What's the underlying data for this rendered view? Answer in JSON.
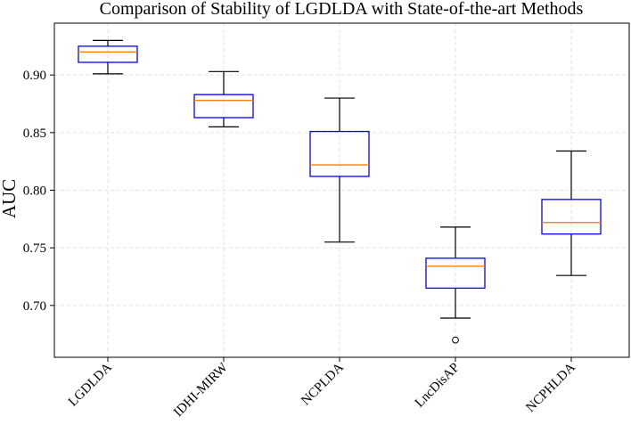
{
  "chart_data": {
    "type": "box",
    "title": "Comparison of Stability of LGDLDA with State-of-the-art Methods",
    "xlabel": "",
    "ylabel": "AUC",
    "ylim": [
      0.655,
      0.945
    ],
    "yticks": [
      0.7,
      0.75,
      0.8,
      0.85,
      0.9
    ],
    "grid": true,
    "colors": {
      "box": "#0000ff",
      "median": "#ff7f0e",
      "whisker": "#000000",
      "grid": "#e3e3e3"
    },
    "categories": [
      "LGDLDA",
      "IDHI-MIRW",
      "NCPLDA",
      "LncDisAP",
      "NCPHLDA"
    ],
    "boxes": [
      {
        "label": "LGDLDA",
        "whisker_low": 0.901,
        "q1": 0.911,
        "median": 0.92,
        "q3": 0.925,
        "whisker_high": 0.93,
        "outliers": []
      },
      {
        "label": "IDHI-MIRW",
        "whisker_low": 0.855,
        "q1": 0.863,
        "median": 0.878,
        "q3": 0.883,
        "whisker_high": 0.903,
        "outliers": []
      },
      {
        "label": "NCPLDA",
        "whisker_low": 0.755,
        "q1": 0.812,
        "median": 0.822,
        "q3": 0.851,
        "whisker_high": 0.88,
        "outliers": []
      },
      {
        "label": "LncDisAP",
        "whisker_low": 0.689,
        "q1": 0.715,
        "median": 0.734,
        "q3": 0.741,
        "whisker_high": 0.768,
        "outliers": [
          0.67
        ]
      },
      {
        "label": "NCPHLDA",
        "whisker_low": 0.726,
        "q1": 0.762,
        "median": 0.772,
        "q3": 0.792,
        "whisker_high": 0.834,
        "outliers": []
      }
    ]
  }
}
